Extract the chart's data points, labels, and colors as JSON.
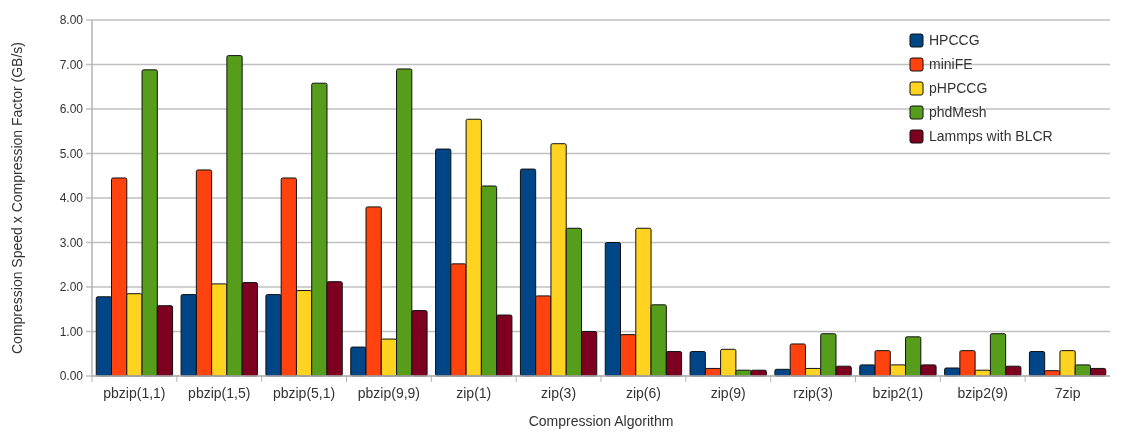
{
  "chart_data": {
    "type": "bar",
    "xlabel": "Compression Algorithm",
    "ylabel": "Compression Speed x Compression Factor (GB/s)",
    "categories": [
      "pbzip(1,1)",
      "pbzip(1,5)",
      "pbzip(5,1)",
      "pbzip(9,9)",
      "zip(1)",
      "zip(3)",
      "zip(6)",
      "zip(9)",
      "rzip(3)",
      "bzip2(1)",
      "bzip2(9)",
      "7zip"
    ],
    "series": [
      {
        "name": "HPCCG",
        "color": "#004586",
        "values": [
          1.78,
          1.83,
          1.83,
          0.65,
          5.1,
          4.65,
          3.0,
          0.55,
          0.15,
          0.25,
          0.18,
          0.55
        ]
      },
      {
        "name": "miniFE",
        "color": "#ff420e",
        "values": [
          4.45,
          4.63,
          4.45,
          3.8,
          2.52,
          1.8,
          0.93,
          0.17,
          0.72,
          0.57,
          0.57,
          0.12
        ]
      },
      {
        "name": "pHPCCG",
        "color": "#ffd320",
        "values": [
          1.85,
          2.07,
          1.92,
          0.83,
          5.77,
          5.22,
          3.32,
          0.6,
          0.17,
          0.25,
          0.13,
          0.57
        ]
      },
      {
        "name": "phdMesh",
        "color": "#579d1c",
        "values": [
          6.88,
          7.2,
          6.58,
          6.9,
          4.27,
          3.32,
          1.6,
          0.13,
          0.95,
          0.88,
          0.95,
          0.25
        ]
      },
      {
        "name": "Lammps with BLCR",
        "color": "#7e0021",
        "values": [
          1.58,
          2.1,
          2.12,
          1.47,
          1.37,
          1.0,
          0.55,
          0.13,
          0.22,
          0.25,
          0.22,
          0.17
        ]
      }
    ],
    "ylim": [
      0,
      8
    ],
    "yticks": [
      {
        "value": 0,
        "label": "0.00"
      },
      {
        "value": 1,
        "label": "1.00"
      },
      {
        "value": 2,
        "label": "2.00"
      },
      {
        "value": 3,
        "label": "3.00"
      },
      {
        "value": 4,
        "label": "4.00"
      },
      {
        "value": 5,
        "label": "5.00"
      },
      {
        "value": 6,
        "label": "6.00"
      },
      {
        "value": 7,
        "label": "7.00"
      },
      {
        "value": 8,
        "label": "8.00"
      }
    ],
    "grid": "y",
    "legend": "top right"
  }
}
